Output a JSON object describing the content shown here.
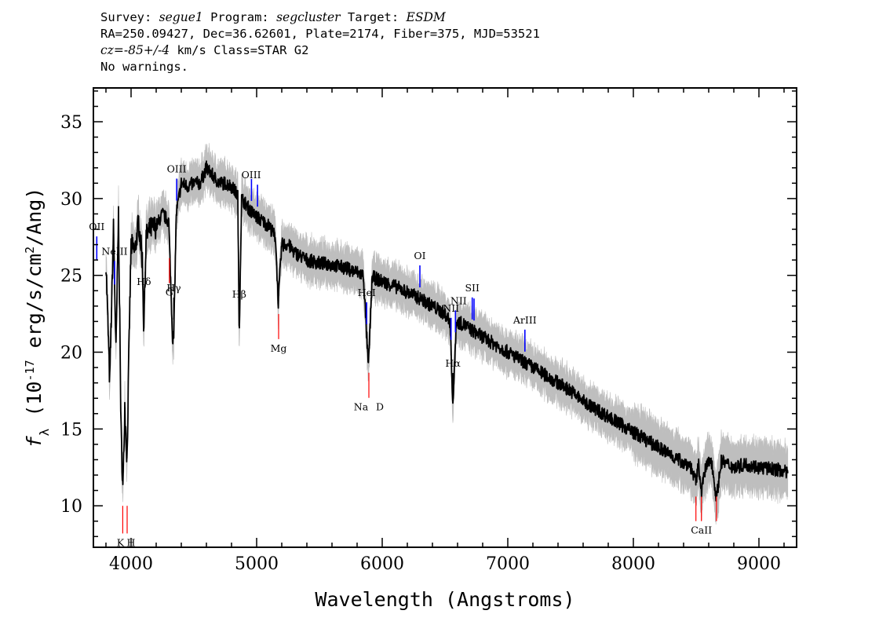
{
  "header": {
    "survey_label": "Survey:",
    "survey": "segue1",
    "program_label": "Program:",
    "program": "segcluster",
    "target_label": "Target:",
    "target": "ESDM",
    "line2": "RA=250.09427, Dec=36.62601, Plate=2174, Fiber=375, MJD=53521",
    "cz_label": "cz=",
    "cz_value": "-85+/-4",
    "line3_rest": " km/s Class=STAR G2",
    "line4": "No warnings."
  },
  "chart_data": {
    "type": "line",
    "xlabel": "Wavelength (Angstroms)",
    "ylabel": "f_λ (10^-17 erg/s/cm^2/Ang)",
    "xlim": [
      3700,
      9300
    ],
    "ylim": [
      7.3,
      37.2
    ],
    "x_ticks": [
      4000,
      5000,
      6000,
      7000,
      8000,
      9000
    ],
    "y_ticks": [
      10,
      15,
      20,
      25,
      30,
      35
    ],
    "colors": {
      "spectrum": "#000000",
      "error": "#bebebe",
      "emission": "#0000ff",
      "absorption": "#ff0000"
    },
    "series": [
      {
        "x": [
          3800,
          3830,
          3860,
          3880,
          3900,
          3920,
          3935,
          3950,
          3968,
          3985,
          4000,
          4030,
          4060,
          4090,
          4101,
          4120,
          4150,
          4200,
          4250,
          4300,
          4330,
          4340,
          4360,
          4400,
          4450,
          4500,
          4550,
          4600,
          4650,
          4700,
          4750,
          4800,
          4850,
          4861,
          4880,
          4900,
          4950,
          5000,
          5050,
          5100,
          5150,
          5172,
          5200,
          5250,
          5300,
          5400,
          5500,
          5600,
          5700,
          5800,
          5850,
          5890,
          5920,
          6000,
          6100,
          6200,
          6300,
          6400,
          6500,
          6540,
          6563,
          6590,
          6650,
          6700,
          6800,
          6900,
          7000,
          7100,
          7200,
          7300,
          7400,
          7500,
          7600,
          7700,
          7800,
          7900,
          8000,
          8100,
          8200,
          8300,
          8400,
          8450,
          8498,
          8520,
          8542,
          8580,
          8620,
          8662,
          8700,
          8800,
          8900,
          9000,
          9100,
          9200,
          9230
        ],
        "values": [
          26.0,
          18.0,
          28.0,
          20.0,
          29.0,
          15.0,
          11.0,
          16.5,
          13.0,
          21.0,
          27.0,
          26.5,
          28.5,
          26.0,
          21.5,
          27.5,
          28.0,
          28.2,
          29.0,
          28.5,
          21.0,
          21.0,
          29.0,
          31.0,
          30.8,
          31.0,
          31.0,
          32.0,
          31.5,
          31.0,
          31.0,
          30.8,
          30.2,
          21.0,
          30.0,
          29.8,
          29.2,
          28.8,
          28.5,
          28.2,
          27.5,
          23.2,
          27.0,
          27.0,
          26.5,
          26.0,
          25.8,
          25.7,
          25.5,
          25.2,
          25.0,
          19.0,
          24.9,
          24.6,
          24.3,
          23.9,
          23.5,
          23.0,
          22.5,
          22.0,
          16.5,
          22.0,
          21.8,
          21.5,
          21.0,
          20.5,
          20.0,
          19.5,
          19.0,
          18.5,
          18.0,
          17.5,
          16.8,
          16.3,
          15.8,
          15.3,
          14.8,
          14.3,
          13.8,
          13.3,
          12.8,
          12.7,
          11.5,
          12.7,
          11.0,
          12.6,
          13.0,
          10.5,
          12.9,
          12.5,
          12.7,
          12.5,
          12.4,
          12.3,
          12.0
        ]
      }
    ],
    "line_markers": [
      {
        "label": "OII",
        "wavelength": 3727,
        "kind": "emission"
      },
      {
        "label": "NeIII",
        "wavelength": 3869,
        "kind": "emission"
      },
      {
        "label": "Hδ",
        "wavelength": 4102,
        "kind": "emission"
      },
      {
        "label": "Hγ",
        "wavelength": 4340,
        "kind": "emission"
      },
      {
        "label": "OIII",
        "wavelength": 4363,
        "kind": "emission"
      },
      {
        "label": "Hβ",
        "wavelength": 4861,
        "kind": "emission"
      },
      {
        "label": "OIII",
        "wavelength": 4959,
        "kind": "emission"
      },
      {
        "label": "OIII",
        "wavelength": 5007,
        "kind": "emission"
      },
      {
        "label": "HeI",
        "wavelength": 5876,
        "kind": "emission"
      },
      {
        "label": "OI",
        "wavelength": 6300,
        "kind": "emission"
      },
      {
        "label": "NII",
        "wavelength": 6548,
        "kind": "emission"
      },
      {
        "label": "Hα",
        "wavelength": 6563,
        "kind": "emission"
      },
      {
        "label": "NII",
        "wavelength": 6583,
        "kind": "emission"
      },
      {
        "label": "SII",
        "wavelength": 6717,
        "kind": "emission"
      },
      {
        "label": "SII",
        "wavelength": 6731,
        "kind": "emission"
      },
      {
        "label": "ArIII",
        "wavelength": 7136,
        "kind": "emission"
      },
      {
        "label": "K",
        "wavelength": 3934,
        "kind": "absorption"
      },
      {
        "label": "H",
        "wavelength": 3969,
        "kind": "absorption"
      },
      {
        "label": "G",
        "wavelength": 4305,
        "kind": "absorption"
      },
      {
        "label": "Mg",
        "wavelength": 5175,
        "kind": "absorption"
      },
      {
        "label": "Na",
        "wavelength": 5894,
        "kind": "absorption"
      },
      {
        "label": "D",
        "wavelength": 5894,
        "kind": "absorption"
      },
      {
        "label": "CaII",
        "wavelength": 8498,
        "kind": "absorption"
      },
      {
        "label": "CaII",
        "wavelength": 8542,
        "kind": "absorption"
      },
      {
        "label": "CaII",
        "wavelength": 8662,
        "kind": "absorption"
      }
    ]
  }
}
